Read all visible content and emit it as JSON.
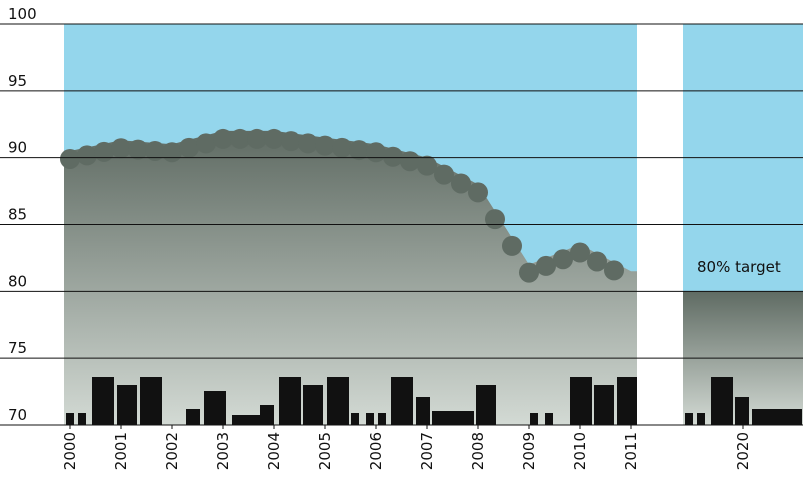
{
  "chart_data": {
    "type": "area",
    "x": [
      2000,
      2001,
      2002,
      2003,
      2004,
      2005,
      2006,
      2007,
      2008,
      2009,
      2010,
      2011,
      2020
    ],
    "values": [
      90.5,
      91.3,
      91,
      92,
      92,
      91.5,
      91,
      90,
      88,
      82,
      83.5,
      81.5,
      80
    ],
    "ylim": [
      70,
      100
    ],
    "yticks": [
      70,
      75,
      80,
      85,
      90,
      95,
      100
    ],
    "xticks": [
      2000,
      2001,
      2002,
      2003,
      2004,
      2005,
      2006,
      2007,
      2008,
      2009,
      2010,
      2011,
      2020
    ],
    "annotation": "80% target",
    "grid": true,
    "color": "#66736a"
  }
}
